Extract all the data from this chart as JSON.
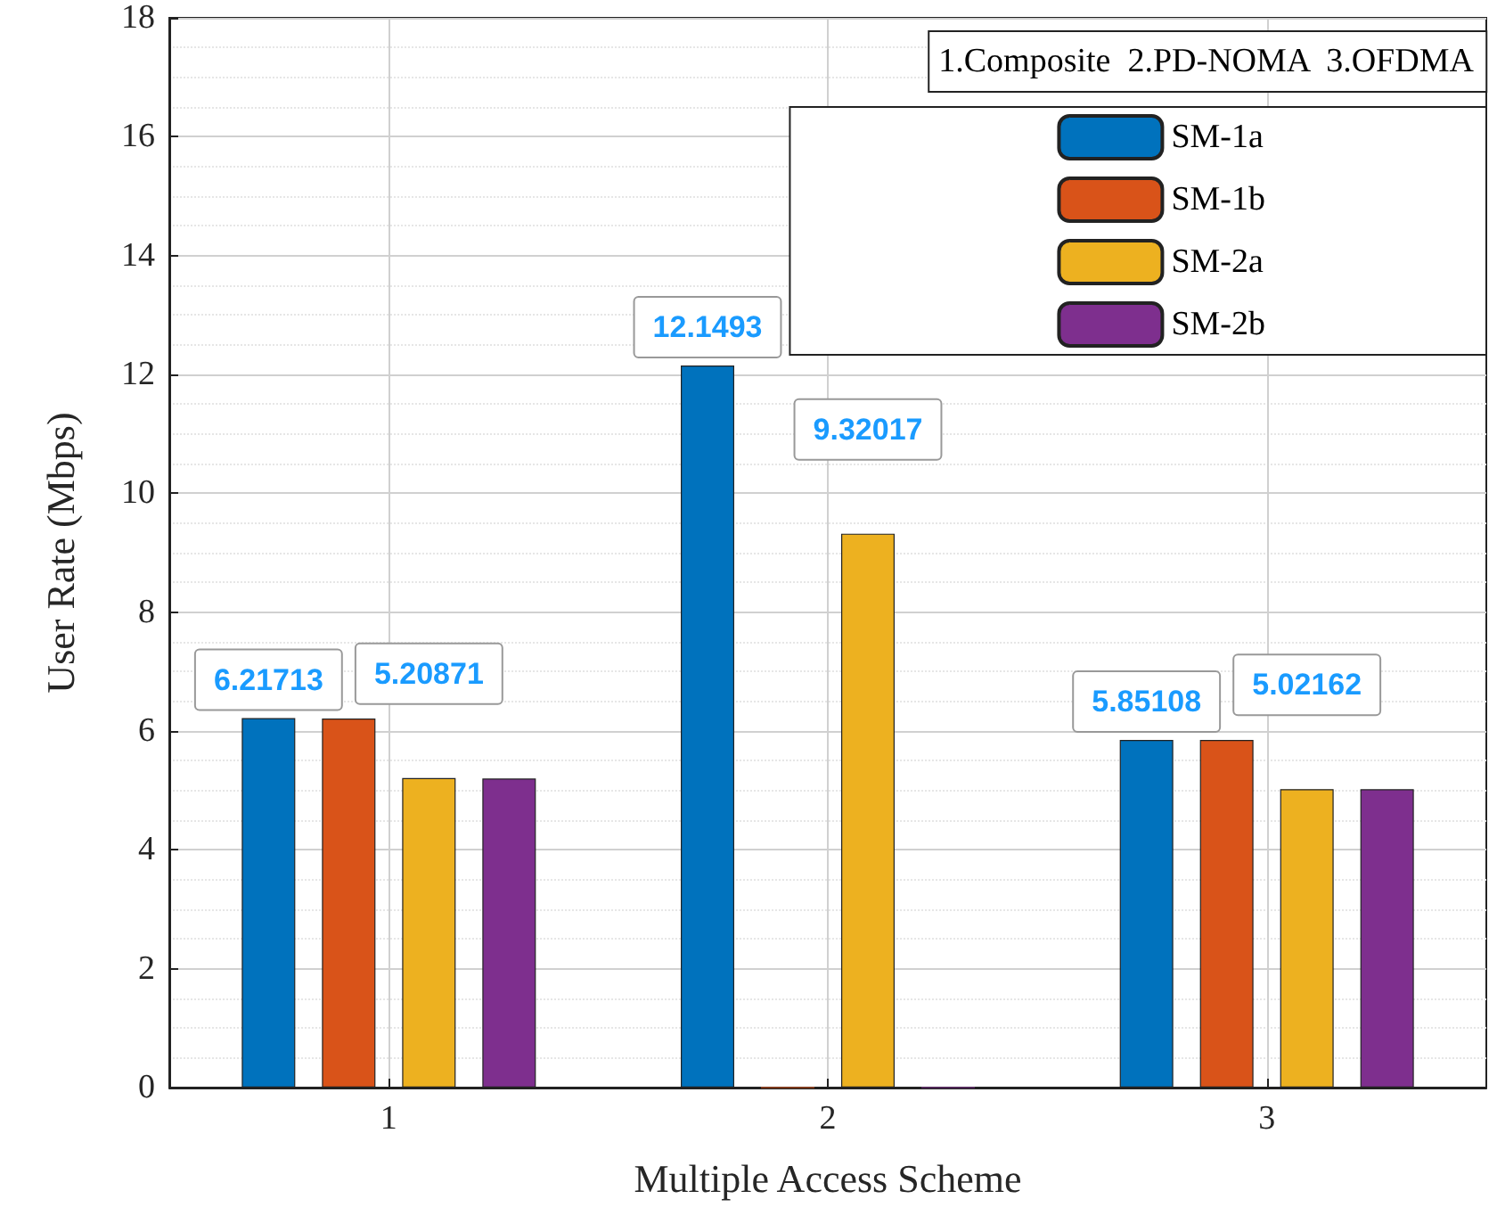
{
  "chart_data": {
    "type": "bar",
    "xlabel": "Multiple Access Scheme",
    "ylabel": "User Rate (Mbps)",
    "legend_title": "1.Composite  2.PD-NOMA  3.OFDMA",
    "x": [
      1,
      2,
      3
    ],
    "xlim": [
      0.5,
      3.5
    ],
    "xticks": [
      1,
      2,
      3
    ],
    "ylim": [
      0,
      18
    ],
    "yticks": [
      0,
      2,
      4,
      6,
      8,
      10,
      12,
      14,
      16,
      18
    ],
    "grid": true,
    "legend": "top right",
    "series": [
      {
        "name": "SM-1a",
        "color": "#0072bd",
        "values": [
          6.21713,
          12.1493,
          5.85108
        ],
        "value_labels": [
          "6.21713",
          "12.1493",
          "5.85108"
        ]
      },
      {
        "name": "SM-1b",
        "color": "#d95319",
        "values": [
          6.21,
          0,
          5.85
        ]
      },
      {
        "name": "SM-2a",
        "color": "#edb120",
        "values": [
          5.20871,
          9.32017,
          5.02162
        ],
        "value_labels": [
          "5.20871",
          "9.32017",
          "5.02162"
        ]
      },
      {
        "name": "SM-2b",
        "color": "#7e2f8e",
        "values": [
          5.2,
          0,
          5.02
        ]
      }
    ]
  }
}
